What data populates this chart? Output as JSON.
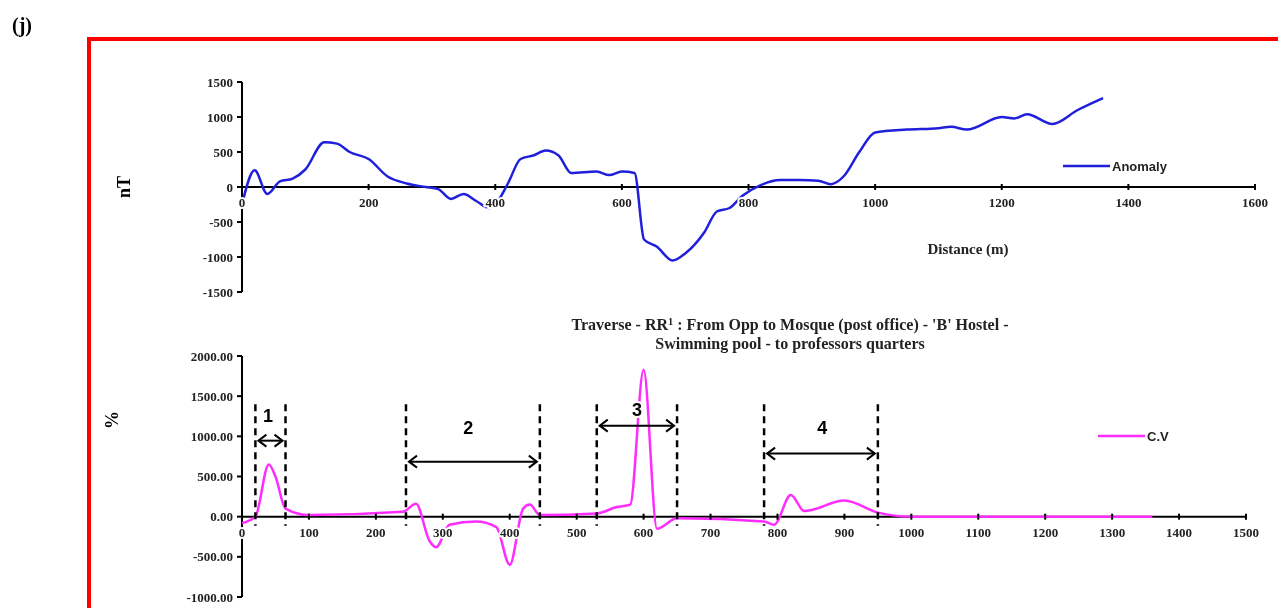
{
  "chart_data": [
    {
      "type": "line",
      "ylabel": "nT",
      "xlabel": "Distance (m)",
      "annotations": [
        "(j)"
      ],
      "xlim": [
        0,
        1600
      ],
      "xticks": [
        0,
        200,
        400,
        600,
        800,
        1000,
        1200,
        1400,
        1600
      ],
      "ylim": [
        -1500,
        1500
      ],
      "yticks": [
        -1500,
        -1000,
        -500,
        0,
        500,
        1000,
        1500
      ],
      "grid": false,
      "legend": "right",
      "marker": "none",
      "line_style": "solid",
      "series": [
        {
          "name": "Anomaly",
          "color": "#1f1fdc",
          "x": [
            0,
            20,
            40,
            60,
            80,
            100,
            130,
            150,
            170,
            200,
            230,
            260,
            290,
            310,
            330,
            350,
            370,
            390,
            400,
            420,
            440,
            460,
            480,
            500,
            520,
            560,
            580,
            600,
            620,
            635,
            655,
            680,
            700,
            730,
            750,
            770,
            790,
            820,
            850,
            880,
            910,
            930,
            950,
            975,
            1000,
            1050,
            1100,
            1120,
            1145,
            1200,
            1220,
            1240,
            1280,
            1320,
            1360
          ],
          "values": [
            -250,
            240,
            -100,
            80,
            120,
            250,
            640,
            620,
            500,
            400,
            150,
            50,
            0,
            -30,
            -170,
            -100,
            -200,
            -300,
            -250,
            50,
            400,
            450,
            520,
            450,
            200,
            220,
            170,
            220,
            200,
            -750,
            -850,
            -1050,
            -950,
            -650,
            -350,
            -300,
            -130,
            30,
            100,
            100,
            90,
            40,
            150,
            500,
            780,
            820,
            840,
            860,
            820,
            1000,
            980,
            1040,
            900,
            1100,
            1270
          ]
        }
      ]
    },
    {
      "type": "line",
      "title": "Traverse - RR$^{1}$ : From Opp to Mosque (post office) - 'B' Hostel - Swimming pool - to professors quarters",
      "ylabel": "%",
      "xlim": [
        0,
        1500
      ],
      "xticks": [
        0,
        100,
        200,
        300,
        400,
        500,
        600,
        700,
        800,
        900,
        1000,
        1100,
        1200,
        1300,
        1400,
        1500
      ],
      "ylim": [
        -1000,
        2000
      ],
      "yticks": [
        {
          "value": -1000,
          "label": "-1000.00"
        },
        {
          "value": -500,
          "label": "-500.00"
        },
        {
          "value": 0,
          "label": "0.00"
        },
        {
          "value": 500,
          "label": "500.00"
        },
        {
          "value": 1000,
          "label": "1000.00"
        },
        {
          "value": 1500,
          "label": "1500.00"
        },
        {
          "value": 2000,
          "label": "2000.00"
        }
      ],
      "grid": false,
      "legend": "right",
      "marker": "none",
      "line_style": "solid",
      "ref_lines": [
        {
          "axis": "x",
          "value": 20,
          "line_style": "dashed"
        },
        {
          "axis": "x",
          "value": 65,
          "line_style": "dashed"
        },
        {
          "axis": "x",
          "value": 245,
          "line_style": "dashed"
        },
        {
          "axis": "x",
          "value": 445,
          "line_style": "dashed"
        },
        {
          "axis": "x",
          "value": 530,
          "line_style": "dashed"
        },
        {
          "axis": "x",
          "value": 650,
          "line_style": "dashed"
        },
        {
          "axis": "x",
          "value": 780,
          "line_style": "dashed"
        },
        {
          "axis": "x",
          "value": 950,
          "line_style": "dashed"
        }
      ],
      "annotations": [
        "1",
        "2",
        "3",
        "4"
      ],
      "series": [
        {
          "name": "C.V",
          "color": "#ff2cff",
          "x": [
            0,
            20,
            40,
            50,
            65,
            100,
            240,
            260,
            280,
            290,
            310,
            350,
            380,
            400,
            420,
            430,
            445,
            530,
            560,
            580,
            600,
            620,
            650,
            780,
            795,
            820,
            840,
            900,
            950,
            1000,
            1360
          ],
          "values": [
            -80,
            0,
            650,
            500,
            100,
            20,
            60,
            160,
            -300,
            -380,
            -100,
            -60,
            -130,
            -600,
            100,
            150,
            20,
            40,
            120,
            150,
            1830,
            -150,
            -20,
            -60,
            -100,
            270,
            70,
            200,
            50,
            0,
            0
          ]
        }
      ]
    }
  ]
}
